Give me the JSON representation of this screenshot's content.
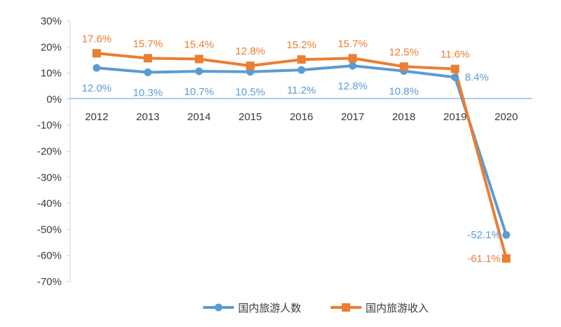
{
  "chart_data": {
    "type": "line",
    "categories": [
      "2012",
      "2013",
      "2014",
      "2015",
      "2016",
      "2017",
      "2018",
      "2019",
      "2020"
    ],
    "y_ticks": [
      "30%",
      "20%",
      "10%",
      "0%",
      "-10%",
      "-20%",
      "-30%",
      "-40%",
      "-50%",
      "-60%",
      "-70%"
    ],
    "ylim": [
      -70,
      30
    ],
    "grid": false,
    "legend_position": "bottom",
    "series": [
      {
        "name": "国内旅游人数",
        "color": "#5b9bd5",
        "marker": "circle",
        "values": [
          12.0,
          10.3,
          10.7,
          10.5,
          11.2,
          12.8,
          10.8,
          8.4,
          -52.1
        ],
        "labels": [
          "12.0%",
          "10.3%",
          "10.7%",
          "10.5%",
          "11.2%",
          "12.8%",
          "10.8%",
          "8.4%",
          "-52.1%"
        ]
      },
      {
        "name": "国内旅游收入",
        "color": "#ed7d31",
        "marker": "square",
        "values": [
          17.6,
          15.7,
          15.4,
          12.8,
          15.2,
          15.7,
          12.5,
          11.6,
          -61.1
        ],
        "labels": [
          "17.6%",
          "15.7%",
          "15.4%",
          "12.8%",
          "15.2%",
          "15.7%",
          "12.5%",
          "11.6%",
          "-61.1%"
        ]
      }
    ]
  }
}
